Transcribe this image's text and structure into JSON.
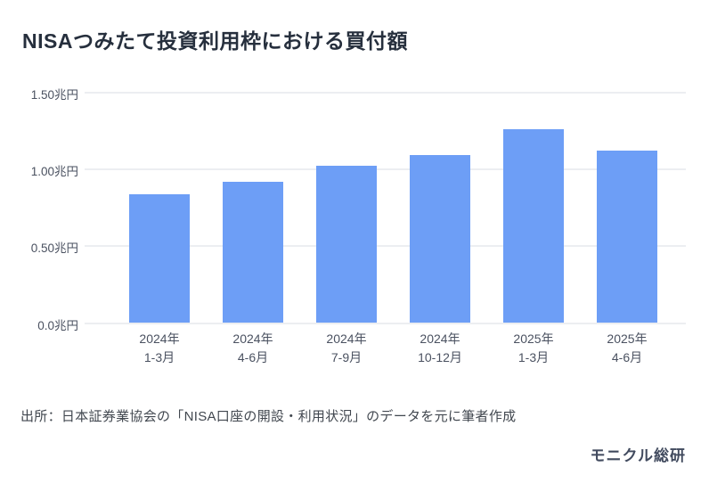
{
  "chart_data": {
    "type": "bar",
    "title": "NISAつみたて投資利用枠における買付額",
    "unit": "兆円",
    "categories": [
      {
        "line1": "2024年",
        "line2": "1-3月"
      },
      {
        "line1": "2024年",
        "line2": "4-6月"
      },
      {
        "line1": "2024年",
        "line2": "7-9月"
      },
      {
        "line1": "2024年",
        "line2": "10-12月"
      },
      {
        "line1": "2025年",
        "line2": "1-3月"
      },
      {
        "line1": "2025年",
        "line2": "4-6月"
      }
    ],
    "values": [
      0.84,
      0.92,
      1.02,
      1.09,
      1.26,
      1.12
    ],
    "ylim": [
      0,
      1.5
    ],
    "yticks": [
      {
        "value": 0.0,
        "label": "0.0兆円"
      },
      {
        "value": 0.5,
        "label": "0.50兆円"
      },
      {
        "value": 1.0,
        "label": "1.00兆円"
      },
      {
        "value": 1.5,
        "label": "1.50兆円"
      }
    ],
    "grid": true,
    "legend": "none",
    "colors": {
      "bar": "#6d9ef6",
      "gridline": "#eceef1",
      "title": "#262f3d",
      "tick_text": "#4a5160"
    }
  },
  "footer": {
    "source": "出所：日本証券業協会の「NISA口座の開設・利用状況」のデータを元に筆者作成",
    "logo": "モニクル総研"
  }
}
